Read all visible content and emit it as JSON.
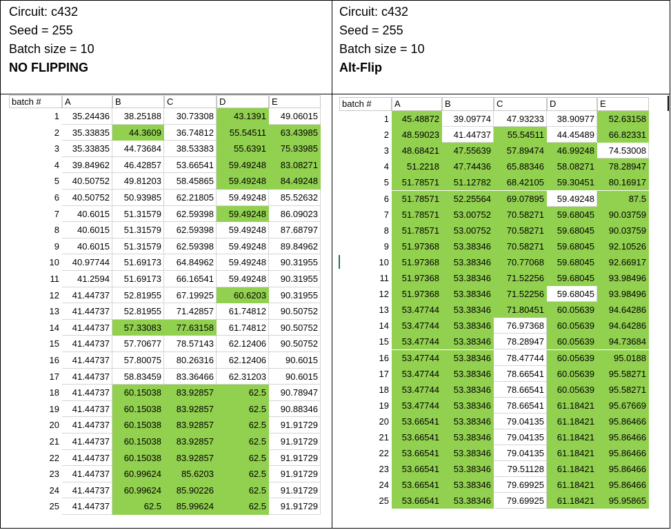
{
  "left": {
    "circuit": "Circuit: c432",
    "seed": "Seed = 255",
    "batch": "Batch size = 10",
    "mode": "NO FLIPPING",
    "headers": [
      "batch #",
      "A",
      "B",
      "C",
      "D",
      "E"
    ],
    "rows": [
      [
        "1",
        "35.24436",
        "38.25188",
        "30.73308",
        "43.1391",
        "49.06015"
      ],
      [
        "2",
        "35.33835",
        "44.3609",
        "36.74812",
        "55.54511",
        "63.43985"
      ],
      [
        "3",
        "35.33835",
        "44.73684",
        "38.53383",
        "55.6391",
        "75.93985"
      ],
      [
        "4",
        "39.84962",
        "46.42857",
        "53.66541",
        "59.49248",
        "83.08271"
      ],
      [
        "5",
        "40.50752",
        "49.81203",
        "58.45865",
        "59.49248",
        "84.49248"
      ],
      [
        "6",
        "40.50752",
        "50.93985",
        "62.21805",
        "59.49248",
        "85.52632"
      ],
      [
        "7",
        "40.6015",
        "51.31579",
        "62.59398",
        "59.49248",
        "86.09023"
      ],
      [
        "8",
        "40.6015",
        "51.31579",
        "62.59398",
        "59.49248",
        "87.68797"
      ],
      [
        "9",
        "40.6015",
        "51.31579",
        "62.59398",
        "59.49248",
        "89.84962"
      ],
      [
        "10",
        "40.97744",
        "51.69173",
        "64.84962",
        "59.49248",
        "90.31955"
      ],
      [
        "11",
        "41.2594",
        "51.69173",
        "66.16541",
        "59.49248",
        "90.31955"
      ],
      [
        "12",
        "41.44737",
        "52.81955",
        "67.19925",
        "60.6203",
        "90.31955"
      ],
      [
        "13",
        "41.44737",
        "52.81955",
        "71.42857",
        "61.74812",
        "90.50752"
      ],
      [
        "14",
        "41.44737",
        "57.33083",
        "77.63158",
        "61.74812",
        "90.50752"
      ],
      [
        "15",
        "41.44737",
        "57.70677",
        "78.57143",
        "62.12406",
        "90.50752"
      ],
      [
        "16",
        "41.44737",
        "57.80075",
        "80.26316",
        "62.12406",
        "90.6015"
      ],
      [
        "17",
        "41.44737",
        "58.83459",
        "83.36466",
        "62.31203",
        "90.6015"
      ],
      [
        "18",
        "41.44737",
        "60.15038",
        "83.92857",
        "62.5",
        "90.78947"
      ],
      [
        "19",
        "41.44737",
        "60.15038",
        "83.92857",
        "62.5",
        "90.88346"
      ],
      [
        "20",
        "41.44737",
        "60.15038",
        "83.92857",
        "62.5",
        "91.91729"
      ],
      [
        "21",
        "41.44737",
        "60.15038",
        "83.92857",
        "62.5",
        "91.91729"
      ],
      [
        "22",
        "41.44737",
        "60.15038",
        "83.92857",
        "62.5",
        "91.91729"
      ],
      [
        "23",
        "41.44737",
        "60.99624",
        "85.6203",
        "62.5",
        "91.91729"
      ],
      [
        "24",
        "41.44737",
        "60.99624",
        "85.90226",
        "62.5",
        "91.91729"
      ],
      [
        "25",
        "41.44737",
        "62.5",
        "85.99624",
        "62.5",
        "91.91729"
      ]
    ],
    "green": [
      [
        0,
        0,
        0,
        1,
        0
      ],
      [
        0,
        1,
        0,
        1,
        1
      ],
      [
        0,
        0,
        0,
        1,
        1
      ],
      [
        0,
        0,
        0,
        1,
        1
      ],
      [
        0,
        0,
        0,
        1,
        1
      ],
      [
        0,
        0,
        0,
        0,
        0
      ],
      [
        0,
        0,
        0,
        1,
        0
      ],
      [
        0,
        0,
        0,
        0,
        0
      ],
      [
        0,
        0,
        0,
        0,
        0
      ],
      [
        0,
        0,
        0,
        0,
        0
      ],
      [
        0,
        0,
        0,
        0,
        0
      ],
      [
        0,
        0,
        0,
        1,
        0
      ],
      [
        0,
        0,
        0,
        0,
        0
      ],
      [
        0,
        1,
        1,
        0,
        0
      ],
      [
        0,
        0,
        0,
        0,
        0
      ],
      [
        0,
        0,
        0,
        0,
        0
      ],
      [
        0,
        0,
        0,
        0,
        0
      ],
      [
        0,
        1,
        1,
        1,
        0
      ],
      [
        0,
        1,
        1,
        1,
        0
      ],
      [
        0,
        1,
        1,
        1,
        0
      ],
      [
        0,
        1,
        1,
        1,
        0
      ],
      [
        0,
        1,
        1,
        1,
        0
      ],
      [
        0,
        1,
        1,
        1,
        0
      ],
      [
        0,
        1,
        1,
        1,
        0
      ],
      [
        0,
        1,
        1,
        1,
        0
      ]
    ]
  },
  "right": {
    "circuit": "Circuit: c432",
    "seed": "Seed = 255",
    "batch": "Batch size = 10",
    "mode": "Alt-Flip",
    "headers": [
      "batch #",
      "A",
      "B",
      "C",
      "D",
      "E"
    ],
    "rows": [
      [
        "1",
        "45.48872",
        "39.09774",
        "47.93233",
        "38.90977",
        "52.63158"
      ],
      [
        "2",
        "48.59023",
        "41.44737",
        "55.54511",
        "44.45489",
        "66.82331"
      ],
      [
        "3",
        "48.68421",
        "47.55639",
        "57.89474",
        "46.99248",
        "74.53008"
      ],
      [
        "4",
        "51.2218",
        "47.74436",
        "65.88346",
        "58.08271",
        "78.28947"
      ],
      [
        "5",
        "51.78571",
        "51.12782",
        "68.42105",
        "59.30451",
        "80.16917"
      ],
      [
        "6",
        "51.78571",
        "52.25564",
        "69.07895",
        "59.49248",
        "87.5"
      ],
      [
        "7",
        "51.78571",
        "53.00752",
        "70.58271",
        "59.68045",
        "90.03759"
      ],
      [
        "8",
        "51.78571",
        "53.00752",
        "70.58271",
        "59.68045",
        "90.03759"
      ],
      [
        "9",
        "51.97368",
        "53.38346",
        "70.58271",
        "59.68045",
        "92.10526"
      ],
      [
        "10",
        "51.97368",
        "53.38346",
        "70.77068",
        "59.68045",
        "92.66917"
      ],
      [
        "11",
        "51.97368",
        "53.38346",
        "71.52256",
        "59.68045",
        "93.98496"
      ],
      [
        "12",
        "51.97368",
        "53.38346",
        "71.52256",
        "59.68045",
        "93.98496"
      ],
      [
        "13",
        "53.47744",
        "53.38346",
        "71.80451",
        "60.05639",
        "94.64286"
      ],
      [
        "14",
        "53.47744",
        "53.38346",
        "76.97368",
        "60.05639",
        "94.64286"
      ],
      [
        "15",
        "53.47744",
        "53.38346",
        "78.28947",
        "60.05639",
        "94.73684"
      ],
      [
        "16",
        "53.47744",
        "53.38346",
        "78.47744",
        "60.05639",
        "95.0188"
      ],
      [
        "17",
        "53.47744",
        "53.38346",
        "78.66541",
        "60.05639",
        "95.58271"
      ],
      [
        "18",
        "53.47744",
        "53.38346",
        "78.66541",
        "60.05639",
        "95.58271"
      ],
      [
        "19",
        "53.47744",
        "53.38346",
        "78.66541",
        "61.18421",
        "95.67669"
      ],
      [
        "20",
        "53.66541",
        "53.38346",
        "79.04135",
        "61.18421",
        "95.86466"
      ],
      [
        "21",
        "53.66541",
        "53.38346",
        "79.04135",
        "61.18421",
        "95.86466"
      ],
      [
        "22",
        "53.66541",
        "53.38346",
        "79.04135",
        "61.18421",
        "95.86466"
      ],
      [
        "23",
        "53.66541",
        "53.38346",
        "79.51128",
        "61.18421",
        "95.86466"
      ],
      [
        "24",
        "53.66541",
        "53.38346",
        "79.69925",
        "61.18421",
        "95.86466"
      ],
      [
        "25",
        "53.66541",
        "53.38346",
        "79.69925",
        "61.18421",
        "95.95865"
      ]
    ],
    "green": [
      [
        1,
        0,
        0,
        0,
        1
      ],
      [
        1,
        0,
        1,
        0,
        1
      ],
      [
        1,
        1,
        1,
        1,
        0
      ],
      [
        1,
        1,
        1,
        1,
        1
      ],
      [
        1,
        1,
        1,
        1,
        1
      ],
      [
        1,
        1,
        1,
        0,
        1
      ],
      [
        1,
        1,
        1,
        1,
        1
      ],
      [
        1,
        1,
        1,
        1,
        1
      ],
      [
        1,
        1,
        1,
        1,
        1
      ],
      [
        1,
        1,
        1,
        1,
        1
      ],
      [
        1,
        1,
        1,
        1,
        1
      ],
      [
        1,
        1,
        1,
        0,
        1
      ],
      [
        1,
        1,
        1,
        1,
        1
      ],
      [
        1,
        1,
        0,
        1,
        1
      ],
      [
        1,
        1,
        0,
        1,
        1
      ],
      [
        1,
        1,
        0,
        1,
        1
      ],
      [
        1,
        1,
        0,
        1,
        1
      ],
      [
        1,
        1,
        0,
        1,
        1
      ],
      [
        1,
        1,
        0,
        1,
        1
      ],
      [
        1,
        1,
        0,
        1,
        1
      ],
      [
        1,
        1,
        0,
        1,
        1
      ],
      [
        1,
        1,
        0,
        1,
        1
      ],
      [
        1,
        1,
        0,
        1,
        1
      ],
      [
        1,
        1,
        0,
        1,
        1
      ],
      [
        1,
        1,
        0,
        1,
        1
      ]
    ]
  },
  "colors": {
    "highlight": "#92d050",
    "grid": "#d4d4d4",
    "border": "#000000"
  }
}
